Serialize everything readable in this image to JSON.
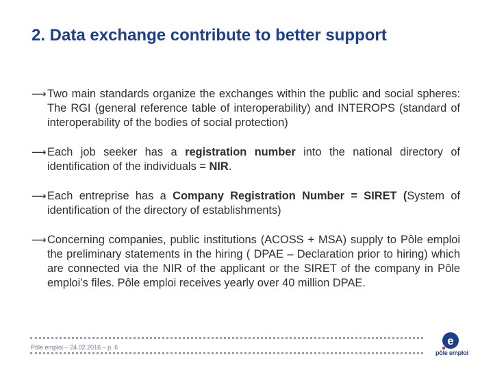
{
  "title": "2. Data exchange contribute to better support",
  "arrow": "⟶",
  "bullets": [
    {
      "segments": [
        {
          "text": "Two main standards organize the exchanges within the public and social spheres: The RGI (general reference table of interoperability) and INTEROPS (standard of interoperability of the bodies of social protection)",
          "bold": false
        }
      ]
    },
    {
      "segments": [
        {
          "text": "Each job seeker has a ",
          "bold": false
        },
        {
          "text": "registration number",
          "bold": true
        },
        {
          "text": " into the national directory of identification of the individuals = ",
          "bold": false
        },
        {
          "text": "NIR",
          "bold": true
        },
        {
          "text": ".",
          "bold": false
        }
      ]
    },
    {
      "segments": [
        {
          "text": "Each entreprise has a ",
          "bold": false
        },
        {
          "text": "Company Registration Number = SIRET (",
          "bold": true
        },
        {
          "text": "System of identification of the directory of establishments)",
          "bold": false
        }
      ]
    },
    {
      "segments": [
        {
          "text": "Concerning companies, public institutions (ACOSS + MSA) supply to Pôle emploi the preliminary statements in the hiring ( DPAE – Declaration prior to hiring) which are connected via the NIR of the applicant or the SIRET of the company in Pôle emploi’s files. Pôle emploi receives yearly over 40 million DPAE.",
          "bold": false
        }
      ]
    }
  ],
  "footer": {
    "text": "Pôle emploi – 24.02.2016 – p. 6",
    "logo_text": "pôle emploi",
    "logo_letter": "e",
    "logo_color": "#1d3f8a"
  },
  "colors": {
    "title": "#1d3f8a",
    "body_text": "#2f2f2f",
    "dots": "#9a9fa8"
  }
}
